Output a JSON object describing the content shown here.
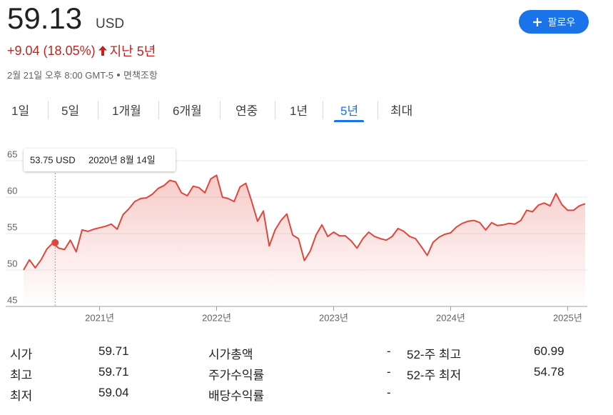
{
  "header": {
    "price": "59.13",
    "currency": "USD",
    "change": "+9.04 (18.05%)",
    "period": "지난 5년",
    "timestamp": "2월 21일 오후 8:00 GMT-5",
    "disclaimer": "면책조항",
    "follow": "팔로우"
  },
  "tabs": [
    "1일",
    "5일",
    "1개월",
    "6개월",
    "연중",
    "1년",
    "5년",
    "최대"
  ],
  "chart_data": {
    "type": "line",
    "x": [
      2020.35,
      2020.4,
      2020.45,
      2020.5,
      2020.55,
      2020.6,
      2020.65,
      2020.7,
      2020.75,
      2020.8,
      2020.85,
      2020.9,
      2020.95,
      2021.0,
      2021.05,
      2021.1,
      2021.15,
      2021.2,
      2021.25,
      2021.3,
      2021.35,
      2021.4,
      2021.45,
      2021.5,
      2021.55,
      2021.6,
      2021.65,
      2021.7,
      2021.75,
      2021.8,
      2021.85,
      2021.9,
      2021.95,
      2022.0,
      2022.05,
      2022.1,
      2022.15,
      2022.2,
      2022.25,
      2022.3,
      2022.35,
      2022.4,
      2022.45,
      2022.5,
      2022.55,
      2022.6,
      2022.65,
      2022.7,
      2022.75,
      2022.8,
      2022.85,
      2022.9,
      2022.95,
      2023.0,
      2023.05,
      2023.1,
      2023.15,
      2023.2,
      2023.25,
      2023.3,
      2023.35,
      2023.4,
      2023.45,
      2023.5,
      2023.55,
      2023.6,
      2023.65,
      2023.7,
      2023.75,
      2023.8,
      2023.85,
      2023.9,
      2023.95,
      2024.0,
      2024.05,
      2024.1,
      2024.15,
      2024.2,
      2024.25,
      2024.3,
      2024.35,
      2024.4,
      2024.45,
      2024.5,
      2024.55,
      2024.6,
      2024.65,
      2024.7,
      2024.75,
      2024.8,
      2024.85,
      2024.9,
      2024.95,
      2025.0,
      2025.05,
      2025.1,
      2025.15
    ],
    "series": [
      {
        "color": "#e0463c",
        "values": [
          50.0,
          51.4,
          50.3,
          51.4,
          52.9,
          53.7,
          53.0,
          52.8,
          54.1,
          52.5,
          55.5,
          55.3,
          55.6,
          55.8,
          56.0,
          56.3,
          55.6,
          57.6,
          58.4,
          59.4,
          59.8,
          59.9,
          60.4,
          61.2,
          61.6,
          62.3,
          62.1,
          60.6,
          60.2,
          61.5,
          61.3,
          60.6,
          62.5,
          63.0,
          60.0,
          59.8,
          59.4,
          61.4,
          61.9,
          59.4,
          56.7,
          58.1,
          53.3,
          55.5,
          56.8,
          57.7,
          54.8,
          54.3,
          51.3,
          52.6,
          54.8,
          56.2,
          54.6,
          55.2,
          54.7,
          54.7,
          54.0,
          53.0,
          54.3,
          55.2,
          54.6,
          54.3,
          54.1,
          54.6,
          55.7,
          55.3,
          54.6,
          54.3,
          53.2,
          52.0,
          53.8,
          54.5,
          54.9,
          55.1,
          55.9,
          56.4,
          56.7,
          56.8,
          56.5,
          55.5,
          56.5,
          56.1,
          56.2,
          56.4,
          56.3,
          56.8,
          58.2,
          58.0,
          58.9,
          59.2,
          58.8,
          60.5,
          59.0,
          58.2,
          58.2,
          58.8,
          59.1
        ]
      }
    ],
    "xlim": [
      2020.35,
      2025.15
    ],
    "xticks": [
      {
        "value": 2021,
        "label": "2021년"
      },
      {
        "value": 2022,
        "label": "2022년"
      },
      {
        "value": 2023,
        "label": "2023년"
      },
      {
        "value": 2024,
        "label": "2024년"
      },
      {
        "value": 2025,
        "label": "2025년"
      }
    ],
    "ylim": [
      45,
      65
    ],
    "yticks": [
      45,
      50,
      55,
      60,
      65
    ],
    "grid": true,
    "hover": {
      "x": 2020.62,
      "value": 53.75,
      "value_label": "53.75 USD",
      "date": "2020년 8월 14일"
    }
  },
  "stats": [
    [
      "시가",
      "59.71",
      "시가총액",
      "-",
      "52-주 최고",
      "60.99"
    ],
    [
      "최고",
      "59.71",
      "주가수익률",
      "-",
      "52-주 최저",
      "54.78"
    ],
    [
      "최저",
      "59.04",
      "배당수익률",
      "-"
    ]
  ]
}
